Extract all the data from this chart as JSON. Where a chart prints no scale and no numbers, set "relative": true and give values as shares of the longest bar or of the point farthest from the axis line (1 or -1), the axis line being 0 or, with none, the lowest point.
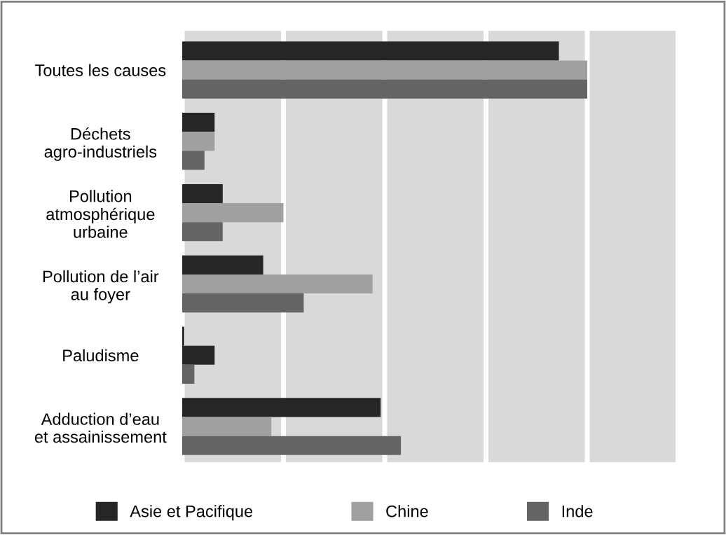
{
  "chart_data": {
    "type": "bar",
    "orientation": "horizontal",
    "relative": true,
    "grid": "x",
    "legend": "bottom",
    "categories": [
      "Toutes les causes",
      "Déchets\nagro-industriels",
      "Pollution\natmosphérique\nurbaine",
      "Pollution de l’air\nau foyer",
      "Paludisme",
      "Adduction d’eau\net assainissement"
    ],
    "series": [
      {
        "name": "Asie et Pacifique",
        "color": "#262626",
        "values": [
          0.93,
          0.08,
          0.1,
          0.2,
          0.005,
          0.49
        ]
      },
      {
        "name": "Chine",
        "color": "#a0a0a0",
        "colors": [
          "#a0a0a0",
          "#a0a0a0",
          "#a0a0a0",
          "#a0a0a0",
          "#262626",
          "#a0a0a0"
        ],
        "values": [
          1,
          0.08,
          0.25,
          0.47,
          0.08,
          0.22
        ]
      },
      {
        "name": "Inde",
        "color": "#646464",
        "values": [
          1,
          0.055,
          0.1,
          0.3,
          0.03,
          0.54
        ]
      }
    ]
  }
}
